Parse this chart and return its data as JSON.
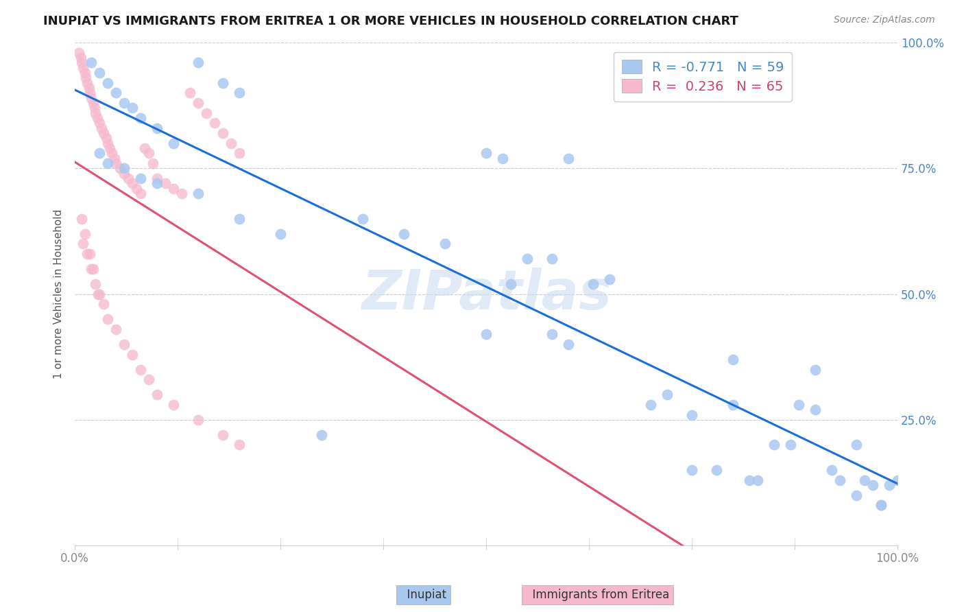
{
  "title": "INUPIAT VS IMMIGRANTS FROM ERITREA 1 OR MORE VEHICLES IN HOUSEHOLD CORRELATION CHART",
  "source": "Source: ZipAtlas.com",
  "ylabel": "1 or more Vehicles in Household",
  "xlim": [
    0.0,
    1.0
  ],
  "ylim": [
    0.0,
    1.0
  ],
  "legend1_R": "-0.771",
  "legend1_N": "59",
  "legend2_R": "0.236",
  "legend2_N": "65",
  "inupiat_color": "#a8c8f0",
  "eritrea_color": "#f5b8cc",
  "trend_inupiat_color": "#1a6edb",
  "trend_eritrea_color": "#e05070",
  "watermark": "ZIPatlas",
  "inupiat_x": [
    0.02,
    0.03,
    0.04,
    0.05,
    0.06,
    0.07,
    0.08,
    0.1,
    0.12,
    0.15,
    0.18,
    0.2,
    0.03,
    0.04,
    0.06,
    0.08,
    0.1,
    0.15,
    0.2,
    0.25,
    0.3,
    0.35,
    0.4,
    0.45,
    0.5,
    0.52,
    0.55,
    0.58,
    0.6,
    0.63,
    0.65,
    0.7,
    0.72,
    0.75,
    0.78,
    0.8,
    0.82,
    0.83,
    0.85,
    0.87,
    0.88,
    0.9,
    0.92,
    0.93,
    0.95,
    0.96,
    0.97,
    0.98,
    0.99,
    1.0,
    0.5,
    0.53,
    0.58,
    0.6,
    0.75,
    0.8,
    0.9,
    0.95,
    0.98
  ],
  "inupiat_y": [
    0.96,
    0.94,
    0.92,
    0.9,
    0.88,
    0.87,
    0.85,
    0.83,
    0.8,
    0.96,
    0.92,
    0.9,
    0.78,
    0.76,
    0.75,
    0.73,
    0.72,
    0.7,
    0.65,
    0.62,
    0.22,
    0.65,
    0.62,
    0.6,
    0.78,
    0.77,
    0.57,
    0.57,
    0.77,
    0.52,
    0.53,
    0.28,
    0.3,
    0.15,
    0.15,
    0.28,
    0.13,
    0.13,
    0.2,
    0.2,
    0.28,
    0.27,
    0.15,
    0.13,
    0.2,
    0.13,
    0.12,
    0.08,
    0.12,
    0.13,
    0.42,
    0.52,
    0.42,
    0.4,
    0.26,
    0.37,
    0.35,
    0.1,
    0.08
  ],
  "eritrea_x": [
    0.005,
    0.007,
    0.008,
    0.01,
    0.012,
    0.013,
    0.015,
    0.017,
    0.018,
    0.02,
    0.022,
    0.024,
    0.025,
    0.027,
    0.03,
    0.032,
    0.035,
    0.038,
    0.04,
    0.042,
    0.045,
    0.048,
    0.05,
    0.055,
    0.06,
    0.065,
    0.07,
    0.075,
    0.08,
    0.085,
    0.09,
    0.095,
    0.1,
    0.11,
    0.12,
    0.13,
    0.14,
    0.15,
    0.16,
    0.17,
    0.18,
    0.19,
    0.2,
    0.01,
    0.015,
    0.02,
    0.025,
    0.03,
    0.035,
    0.04,
    0.05,
    0.06,
    0.07,
    0.08,
    0.09,
    0.1,
    0.12,
    0.15,
    0.18,
    0.2,
    0.008,
    0.012,
    0.018,
    0.022,
    0.028
  ],
  "eritrea_y": [
    0.98,
    0.97,
    0.96,
    0.95,
    0.94,
    0.93,
    0.92,
    0.91,
    0.9,
    0.89,
    0.88,
    0.87,
    0.86,
    0.85,
    0.84,
    0.83,
    0.82,
    0.81,
    0.8,
    0.79,
    0.78,
    0.77,
    0.76,
    0.75,
    0.74,
    0.73,
    0.72,
    0.71,
    0.7,
    0.79,
    0.78,
    0.76,
    0.73,
    0.72,
    0.71,
    0.7,
    0.9,
    0.88,
    0.86,
    0.84,
    0.82,
    0.8,
    0.78,
    0.6,
    0.58,
    0.55,
    0.52,
    0.5,
    0.48,
    0.45,
    0.43,
    0.4,
    0.38,
    0.35,
    0.33,
    0.3,
    0.28,
    0.25,
    0.22,
    0.2,
    0.65,
    0.62,
    0.58,
    0.55,
    0.5
  ],
  "grid_color": "#cccccc",
  "axis_color": "#888888",
  "tick_color_right": "#4488cc",
  "title_fontsize": 13,
  "source_fontsize": 10,
  "ylabel_fontsize": 11
}
